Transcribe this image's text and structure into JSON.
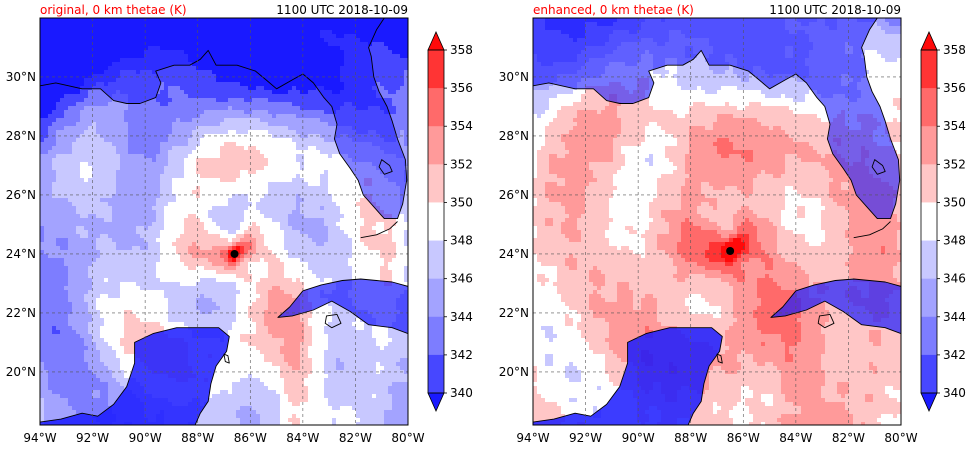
{
  "panels": [
    {
      "title_left": "original, 0 km thetae (K)",
      "title_right": "1100 UTC 2018-10-09",
      "field": "original",
      "storm_center": {
        "lon": -86.6,
        "lat": 24.0
      }
    },
    {
      "title_left": "enhanced, 0 km thetae (K)",
      "title_right": "1100 UTC 2018-10-09",
      "field": "enhanced",
      "storm_center": {
        "lon": -86.5,
        "lat": 24.1
      }
    }
  ],
  "map": {
    "lon_range": [
      -94,
      -80
    ],
    "lat_range": [
      18.2,
      32.0
    ],
    "lon_ticks": [
      -94,
      -92,
      -90,
      -88,
      -86,
      -84,
      -82,
      -80
    ],
    "lon_tick_labels": [
      "94°W",
      "92°W",
      "90°W",
      "88°W",
      "86°W",
      "84°W",
      "82°W",
      "80°W"
    ],
    "lat_ticks": [
      20,
      22,
      24,
      26,
      28,
      30
    ],
    "lat_tick_labels": [
      "20°N",
      "22°N",
      "24°N",
      "26°N",
      "28°N",
      "30°N"
    ],
    "grid": true
  },
  "colorbar": {
    "levels": [
      340,
      342,
      344,
      346,
      348,
      350,
      352,
      354,
      356,
      358
    ],
    "tick_labels": [
      "340",
      "342",
      "344",
      "346",
      "348",
      "350",
      "352",
      "354",
      "356",
      "358"
    ],
    "colors": [
      "#1a1aff",
      "#4747ff",
      "#7d7dff",
      "#a3a3ff",
      "#c8c8ff",
      "#ffffff",
      "#ffc6c6",
      "#ff9a9a",
      "#ff6a6a",
      "#ff3434",
      "#ff0a0a"
    ],
    "extend": "both"
  },
  "colors": {
    "title_left": "#ff0000",
    "title_right": "#000000",
    "land_low": "#1a1aff",
    "coast": "#000000"
  }
}
